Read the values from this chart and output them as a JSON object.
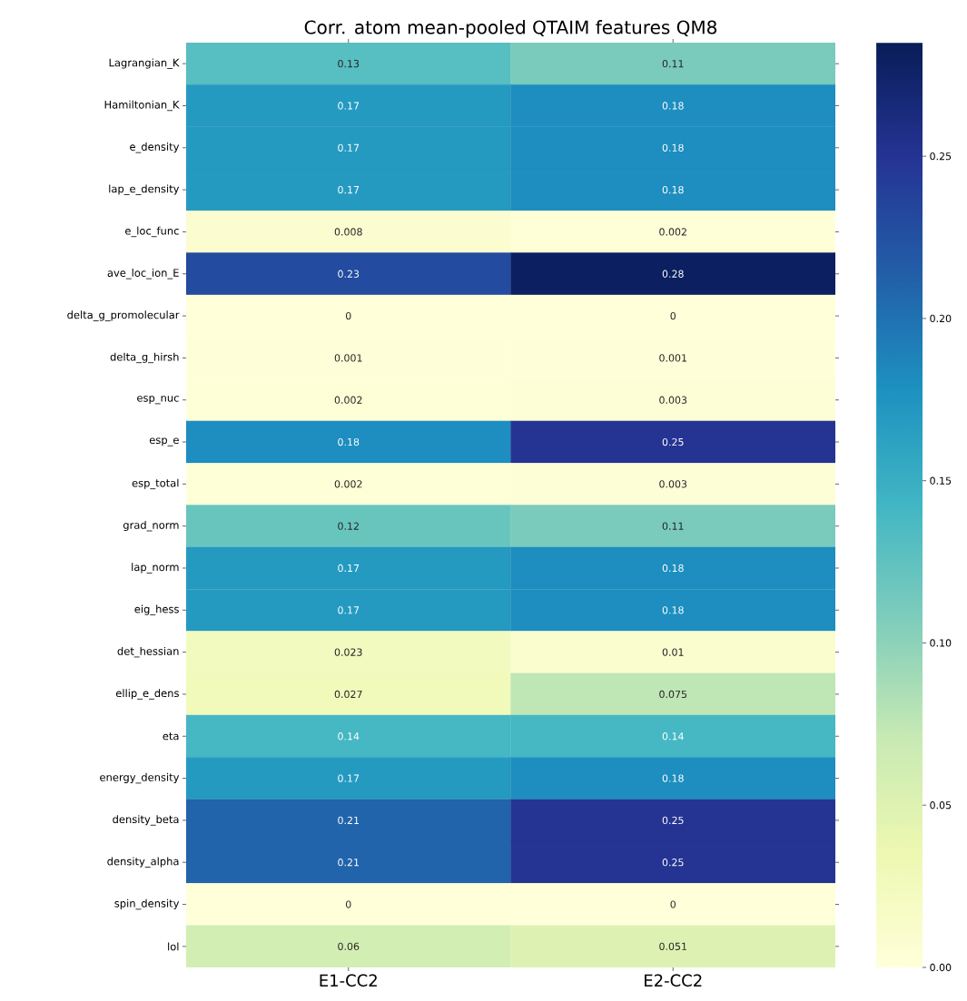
{
  "chart_data": {
    "type": "heatmap",
    "title": "Corr. atom mean-pooled QTAIM features QM8",
    "categories": [
      "E1-CC2",
      "E2-CC2"
    ],
    "y_categories": [
      "Lagrangian_K",
      "Hamiltonian_K",
      "e_density",
      "lap_e_density",
      "e_loc_func",
      "ave_loc_ion_E",
      "delta_g_promolecular",
      "delta_g_hirsh",
      "esp_nuc",
      "esp_e",
      "esp_total",
      "grad_norm",
      "lap_norm",
      "eig_hess",
      "det_hessian",
      "ellip_e_dens",
      "eta",
      "energy_density",
      "density_beta",
      "density_alpha",
      "spin_density",
      "lol"
    ],
    "cells": [
      [
        0.13,
        0.11
      ],
      [
        0.17,
        0.18
      ],
      [
        0.17,
        0.18
      ],
      [
        0.17,
        0.18
      ],
      [
        0.008,
        0.002
      ],
      [
        0.23,
        0.28
      ],
      [
        0,
        0
      ],
      [
        0.001,
        0.001
      ],
      [
        0.002,
        0.003
      ],
      [
        0.18,
        0.25
      ],
      [
        0.002,
        0.003
      ],
      [
        0.12,
        0.11
      ],
      [
        0.17,
        0.18
      ],
      [
        0.17,
        0.18
      ],
      [
        0.023,
        0.01
      ],
      [
        0.027,
        0.075
      ],
      [
        0.14,
        0.14
      ],
      [
        0.17,
        0.18
      ],
      [
        0.21,
        0.25
      ],
      [
        0.21,
        0.25
      ],
      [
        0,
        0
      ],
      [
        0.06,
        0.051
      ]
    ],
    "data_labels": true,
    "clim": [
      0,
      0.285
    ],
    "cticks": [
      {
        "value": 0,
        "label": "0.00"
      },
      {
        "value": 0.05,
        "label": "0.05"
      },
      {
        "value": 0.1,
        "label": "0.10"
      },
      {
        "value": 0.15,
        "label": "0.15"
      },
      {
        "value": 0.2,
        "label": "0.20"
      },
      {
        "value": 0.25,
        "label": "0.25"
      }
    ]
  }
}
